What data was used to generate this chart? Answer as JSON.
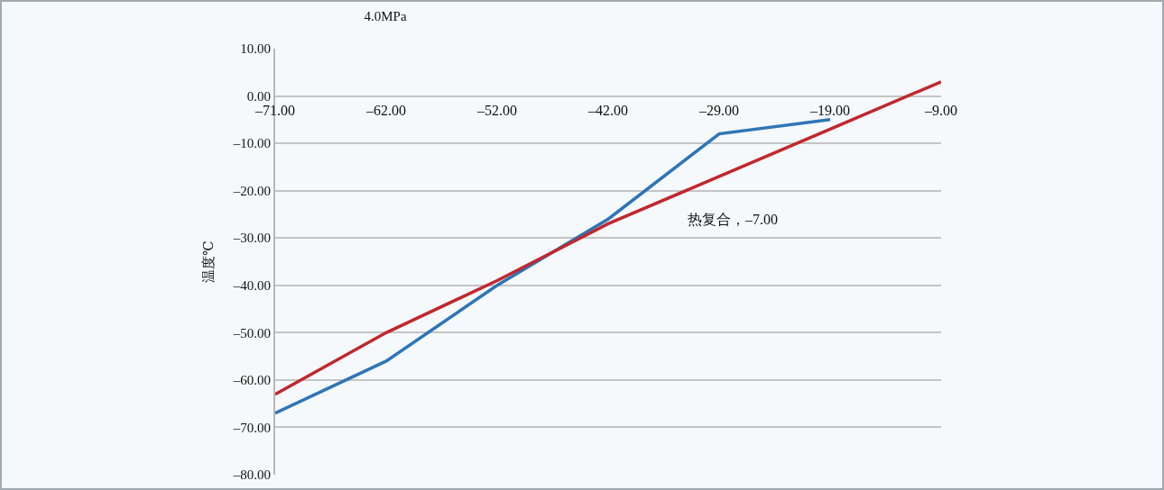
{
  "chart_data": {
    "type": "line",
    "title": "4.0MPa",
    "ylabel": "温度℃",
    "categories": [
      "–71.00",
      "–62.00",
      "–52.00",
      "–42.00",
      "–29.00",
      "–19.00",
      "–9.00"
    ],
    "series": [
      {
        "color": "#2e75b6",
        "values": [
          -67,
          -56,
          -40,
          -26,
          -8,
          -5,
          null
        ]
      },
      {
        "color": "#c0282e",
        "values": [
          -63,
          -50,
          -39,
          -27,
          -17,
          -7,
          3
        ]
      }
    ],
    "ylim": [
      -80,
      10
    ],
    "yticks": [
      {
        "value": 10,
        "label": "10.00"
      },
      {
        "value": 0,
        "label": "0.00"
      },
      {
        "value": -10,
        "label": "–10.00"
      },
      {
        "value": -20,
        "label": "–20.00"
      },
      {
        "value": -30,
        "label": "–30.00"
      },
      {
        "value": -40,
        "label": "–40.00"
      },
      {
        "value": -50,
        "label": "–50.00"
      },
      {
        "value": -60,
        "label": "–60.00"
      },
      {
        "value": -70,
        "label": "–70.00"
      },
      {
        "value": -80,
        "label": "–80.00"
      }
    ],
    "annotations": [
      "热复合，–7.00"
    ],
    "grid": "y",
    "marker": "none",
    "line_style": "solid"
  }
}
